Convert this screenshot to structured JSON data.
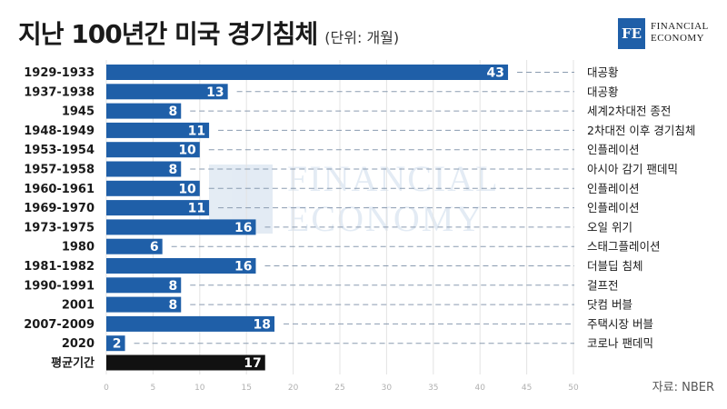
{
  "title": "지난 100년간 미국 경기침체",
  "subtitle": "(단위: 개월)",
  "logo": {
    "mark": "FE",
    "line1": "FINANCIAL",
    "line2": "ECONOMY"
  },
  "watermark": {
    "line1": "FINANCIAL",
    "line2": "ECONOMY"
  },
  "source": "자료: NBER",
  "chart_data": {
    "type": "bar",
    "orientation": "horizontal",
    "categories": [
      "1929-1933",
      "1937-1938",
      "1945",
      "1948-1949",
      "1953-1954",
      "1957-1958",
      "1960-1961",
      "1969-1970",
      "1973-1975",
      "1980",
      "1981-1982",
      "1990-1991",
      "2001",
      "2007-2009",
      "2020",
      "평균기간"
    ],
    "values": [
      43,
      13,
      8,
      11,
      10,
      8,
      10,
      11,
      16,
      6,
      16,
      8,
      8,
      18,
      2,
      17
    ],
    "annotations": [
      "대공황",
      "대공황",
      "세계2차대전 종전",
      "2차대전 이후 경기침체",
      "인플레이션",
      "아시아 감기 팬데믹",
      "인플레이션",
      "인플레이션",
      "오일 위기",
      "스태그플레이션",
      "더블딥 침체",
      "걸프전",
      "닷컴 버블",
      "주택시장 버블",
      "코로나 팬데믹",
      ""
    ],
    "xlim": [
      0,
      50
    ],
    "xticks": [
      0,
      5,
      10,
      15,
      20,
      25,
      30,
      35,
      40,
      45,
      50
    ],
    "grid": true,
    "colors": {
      "bar": "#1f5fa8",
      "average_bar": "#111111",
      "grid": "#e3e3e3",
      "tick": "#b0b0b0",
      "leader": "#8a9bb0"
    }
  }
}
